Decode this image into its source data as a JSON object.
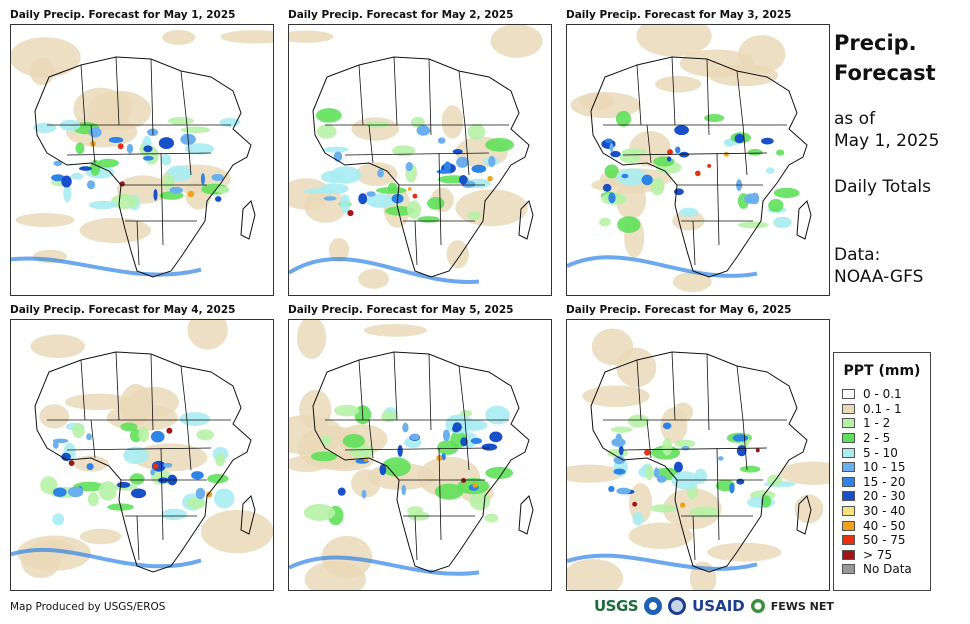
{
  "panels": [
    {
      "title": "Daily Precip. Forecast for May 1, 2025"
    },
    {
      "title": "Daily Precip. Forecast for May 2, 2025"
    },
    {
      "title": "Daily Precip. Forecast for May 3, 2025"
    },
    {
      "title": "Daily Precip. Forecast for May 4, 2025"
    },
    {
      "title": "Daily Precip. Forecast for May 5, 2025"
    },
    {
      "title": "Daily Precip. Forecast for May 6, 2025"
    }
  ],
  "sidebar": {
    "title_line1": "Precip.",
    "title_line2": "Forecast",
    "as_of": "as of",
    "date": "May 1, 2025",
    "period": "Daily Totals",
    "data_label": "Data:",
    "data_source": "NOAA-GFS"
  },
  "legend": {
    "title": "PPT (mm)",
    "items": [
      {
        "label": "0 - 0.1",
        "color": "#ffffff"
      },
      {
        "label": "0.1 - 1",
        "color": "#ead9b9"
      },
      {
        "label": "1 - 2",
        "color": "#b6f2a6"
      },
      {
        "label": "2 - 5",
        "color": "#5fe05a"
      },
      {
        "label": "5 - 10",
        "color": "#a8ecf2"
      },
      {
        "label": "10 - 15",
        "color": "#6ab0ef"
      },
      {
        "label": "15 - 20",
        "color": "#2e83e6"
      },
      {
        "label": "20 - 30",
        "color": "#1750c8"
      },
      {
        "label": "30 - 40",
        "color": "#f6e27a"
      },
      {
        "label": "40 - 50",
        "color": "#f2a11c"
      },
      {
        "label": "50 - 75",
        "color": "#e8300e"
      },
      {
        "label": "> 75",
        "color": "#a51414"
      },
      {
        "label": "No Data",
        "color": "#999999"
      }
    ]
  },
  "footer": {
    "credit": "Map Produced by USGS/EROS",
    "logos": [
      "USGS",
      "NOAA",
      "DOI",
      "USAID",
      "FEWS NET"
    ]
  }
}
